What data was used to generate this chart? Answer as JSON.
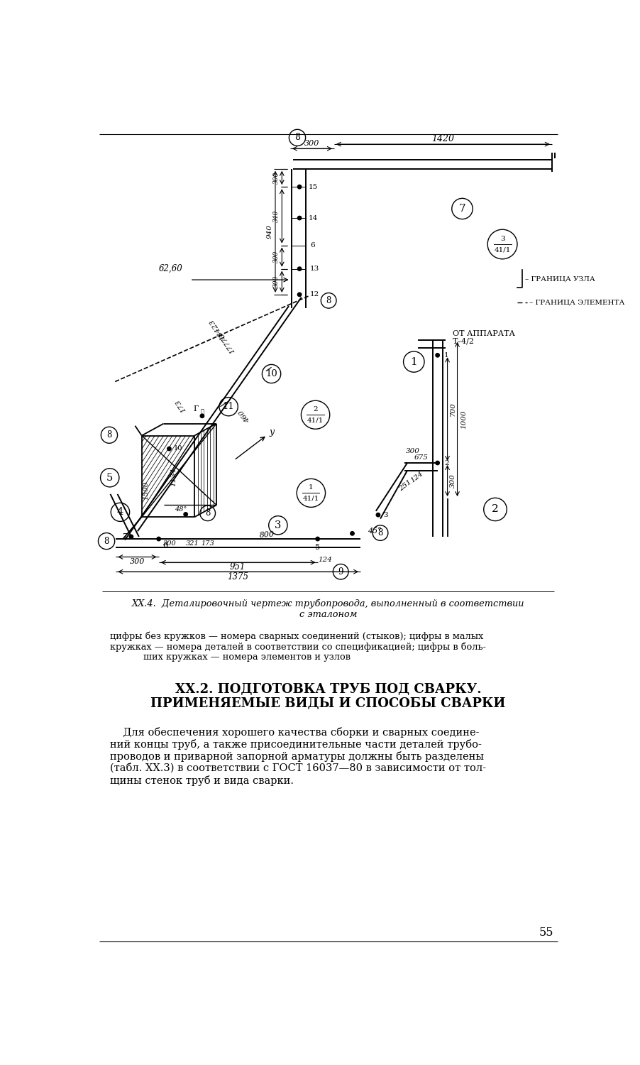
{
  "title_line1": "XX.2. ПОДГОТОВКА ТРУБ ПОД СВАРКУ.",
  "title_line2": "ПРИМЕНЯЕМЫЕ ВИДЫ И СПОСОБЫ СВАРКИ",
  "caption_italic_line1": "XX.4.  Деталировочный чертеж трубопровода, выполненный в соответствии",
  "caption_italic_line2": "с эталоном",
  "caption_text_line1": "цифры без кружков — номера сварных соединений (стыков); цифры в малых",
  "caption_text_line2": "кружках — номера деталей в соответствии со спецификацией; цифры в боль-",
  "caption_text_line3": "ших кружках — номера элементов и узлов",
  "body_line1": "    Для обеспечения хорошего качества сборки и сварных соедине-",
  "body_line2": "ний концы труб, а также присоединительные части деталей трубо-",
  "body_line3": "проводов и приварной запорной арматуры должны быть разделены",
  "body_line4": "(табл. XX.3) в соответствии с ГОСТ 16037—80 в зависимости от тол-",
  "body_line5": "щины стенок труб и вида сварки.",
  "page_number": "55",
  "bg_color": "#ffffff",
  "legend_granica_uzla": "– ГРАНИЦА УЗЛА",
  "legend_granica_elementa": "– ГРАНИЦА ЭЛЕМЕНТА",
  "label_ot_apparata_1": "ОТ АППАРАТА",
  "label_ot_apparata_2": "Т–4/2"
}
